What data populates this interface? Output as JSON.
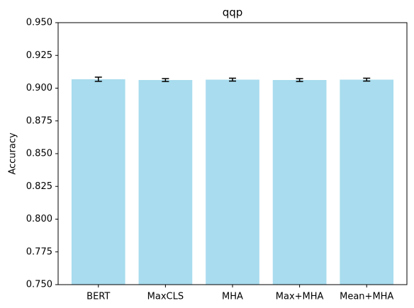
{
  "chart_data": {
    "type": "bar",
    "title": "qqp",
    "y_label": "Accuracy",
    "categories": [
      "BERT",
      "MaxCLS",
      "MHA",
      "Max+MHA",
      "Mean+MHA"
    ],
    "values": [
      0.9068,
      0.9062,
      0.9065,
      0.9062,
      0.9065
    ],
    "errors": [
      0.0016,
      0.0011,
      0.0011,
      0.0011,
      0.0011
    ],
    "color": "#a8dcee",
    "error_color": "#000000",
    "ylim": [
      0.75,
      0.95
    ],
    "yticks": [
      {
        "value": 0.75,
        "label": "0.750"
      },
      0.775,
      {
        "value": 0.8,
        "label": "0.800"
      },
      0.825,
      {
        "value": 0.85,
        "label": "0.850"
      },
      0.875,
      {
        "value": 0.9,
        "label": "0.900"
      },
      0.925,
      {
        "value": 0.95,
        "label": "0.950"
      }
    ],
    "grid": false
  }
}
